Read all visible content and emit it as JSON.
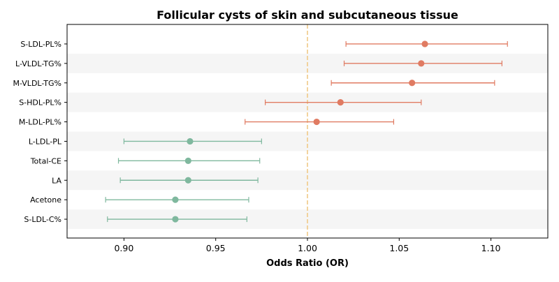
{
  "chart_data": {
    "type": "scatter",
    "subtype": "forest-plot",
    "title": "Follicular cysts of skin and subcutaneous tissue",
    "xlabel": "Odds Ratio (OR)",
    "ylabel": "",
    "xlim": [
      0.869,
      1.131
    ],
    "xticks": [
      0.9,
      0.95,
      1.0,
      1.05,
      1.1
    ],
    "xtick_labels": [
      "0.90",
      "0.95",
      "1.00",
      "1.05",
      "1.10"
    ],
    "reference_line": 1.0,
    "reference_line_style": "dashed",
    "row_banding": "alternating",
    "grid": false,
    "legend": false,
    "colors": {
      "positive": "#E07B62",
      "negative": "#7FB89E",
      "reference": "#F0C987",
      "band": "#F5F5F5"
    },
    "points": [
      {
        "label": "S-LDL-PL%",
        "or": 1.064,
        "ci_low": 1.021,
        "ci_high": 1.109,
        "group": "positive"
      },
      {
        "label": "L-VLDL-TG%",
        "or": 1.062,
        "ci_low": 1.02,
        "ci_high": 1.106,
        "group": "positive"
      },
      {
        "label": "M-VLDL-TG%",
        "or": 1.057,
        "ci_low": 1.013,
        "ci_high": 1.102,
        "group": "positive"
      },
      {
        "label": "S-HDL-PL%",
        "or": 1.018,
        "ci_low": 0.977,
        "ci_high": 1.062,
        "group": "positive"
      },
      {
        "label": "M-LDL-PL%",
        "or": 1.005,
        "ci_low": 0.966,
        "ci_high": 1.047,
        "group": "positive"
      },
      {
        "label": "L-LDL-PL",
        "or": 0.936,
        "ci_low": 0.9,
        "ci_high": 0.975,
        "group": "negative"
      },
      {
        "label": "Total-CE",
        "or": 0.935,
        "ci_low": 0.897,
        "ci_high": 0.974,
        "group": "negative"
      },
      {
        "label": "LA",
        "or": 0.935,
        "ci_low": 0.898,
        "ci_high": 0.973,
        "group": "negative"
      },
      {
        "label": "Acetone",
        "or": 0.928,
        "ci_low": 0.89,
        "ci_high": 0.968,
        "group": "negative"
      },
      {
        "label": "S-LDL-C%",
        "or": 0.928,
        "ci_low": 0.891,
        "ci_high": 0.967,
        "group": "negative"
      }
    ]
  }
}
